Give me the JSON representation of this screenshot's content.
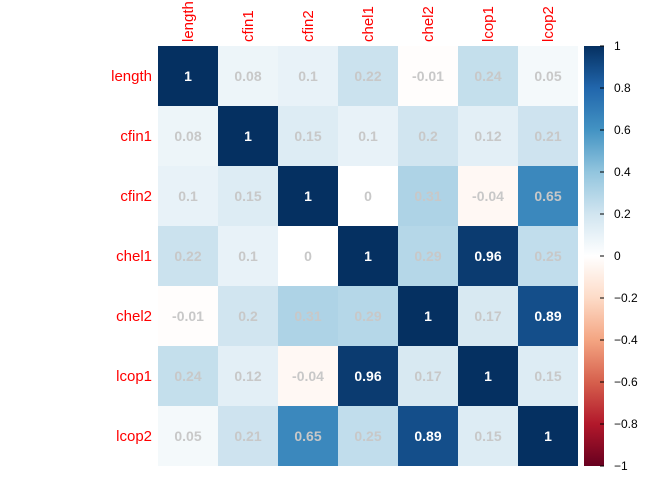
{
  "chart_data": {
    "type": "heatmap",
    "title": "",
    "row_labels": [
      "length",
      "cfin1",
      "cfin2",
      "chel1",
      "chel2",
      "lcop1",
      "lcop2"
    ],
    "col_labels": [
      "length",
      "cfin1",
      "cfin2",
      "chel1",
      "chel2",
      "lcop1",
      "lcop2"
    ],
    "values": [
      [
        1,
        0.08,
        0.1,
        0.22,
        -0.01,
        0.24,
        0.05
      ],
      [
        0.08,
        1,
        0.15,
        0.1,
        0.2,
        0.12,
        0.21
      ],
      [
        0.1,
        0.15,
        1,
        0,
        0.31,
        -0.04,
        0.65
      ],
      [
        0.22,
        0.1,
        0,
        1,
        0.29,
        0.96,
        0.25
      ],
      [
        -0.01,
        0.2,
        0.31,
        0.29,
        1,
        0.17,
        0.89
      ],
      [
        0.24,
        0.12,
        -0.04,
        0.96,
        0.17,
        1,
        0.15
      ],
      [
        0.05,
        0.21,
        0.65,
        0.25,
        0.89,
        0.15,
        1
      ]
    ],
    "value_range": [
      -1,
      1
    ],
    "colorbar": {
      "ticks": [
        1,
        0.8,
        0.6,
        0.4,
        0.2,
        0,
        -0.2,
        -0.4,
        -0.6,
        -0.8,
        -1
      ],
      "tick_labels": [
        "1",
        "0.8",
        "0.6",
        "0.4",
        "0.2",
        "0",
        "−0.2",
        "−0.4",
        "−0.6",
        "−0.8",
        "−1"
      ],
      "placement": "right"
    },
    "label_color": "#ff0000",
    "diverging_palette": [
      "#67001F",
      "#B2182B",
      "#D6604D",
      "#F4A582",
      "#FDDBC7",
      "#FFFFFF",
      "#D1E5F0",
      "#92C5DE",
      "#4393C3",
      "#2166AC",
      "#053061"
    ],
    "value_text_dark": "#ffffff",
    "value_text_light": "#c8c8c8"
  }
}
